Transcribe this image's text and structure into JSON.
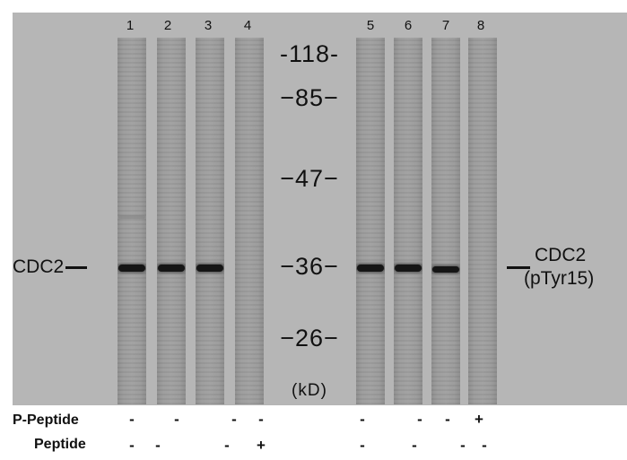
{
  "lanes": [
    {
      "number": "1",
      "band": true
    },
    {
      "number": "2",
      "band": true
    },
    {
      "number": "3",
      "band": true
    },
    {
      "number": "4",
      "band": false
    },
    {
      "number": "5",
      "band": true
    },
    {
      "number": "6",
      "band": true
    },
    {
      "number": "7",
      "band": true
    },
    {
      "number": "8",
      "band": false
    }
  ],
  "markers": [
    "-118-",
    "−85−",
    "−47−",
    "−36−",
    "−26−"
  ],
  "unit": "(kD)",
  "label_left": "CDC2",
  "label_right_line1": "CDC2",
  "label_right_line2": "(pTyr15)",
  "rows": [
    {
      "label": "P-Peptide",
      "signs": [
        "-",
        "-",
        "-",
        "-",
        "-",
        "-",
        "-",
        "+"
      ]
    },
    {
      "label": "Peptide",
      "signs": [
        "-",
        "-",
        "-",
        "+",
        "-",
        "-",
        "-",
        "-"
      ]
    }
  ],
  "colors": {
    "background": "#b6b6b6",
    "lane": "#9a9a9a",
    "band": "#151515"
  }
}
